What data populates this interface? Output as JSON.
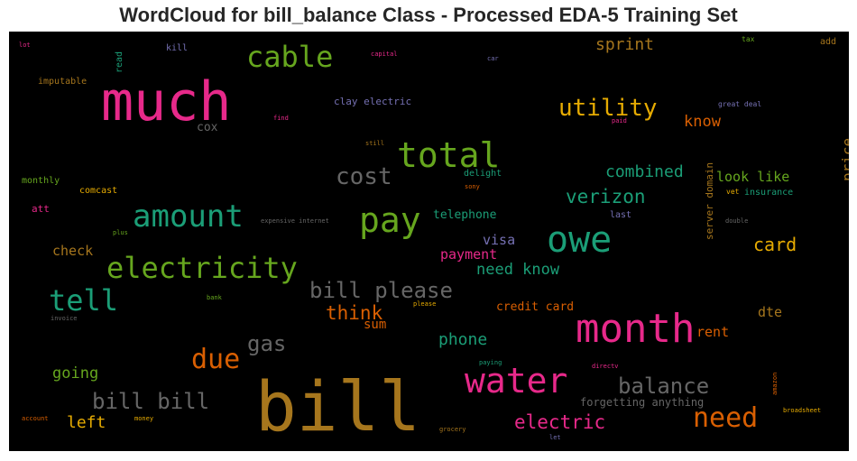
{
  "chart_data": {
    "type": "wordcloud",
    "title": "WordCloud for bill_balance Class - Processed EDA-5 Training Set",
    "background": "#000000",
    "words": [
      {
        "text": "bill",
        "color": "#a6761d"
      },
      {
        "text": "much",
        "color": "#e7298a"
      },
      {
        "text": "month",
        "color": "#e7298a"
      },
      {
        "text": "total",
        "color": "#66a61e"
      },
      {
        "text": "owe",
        "color": "#1b9e77"
      },
      {
        "text": "pay",
        "color": "#66a61e"
      },
      {
        "text": "water",
        "color": "#e7298a"
      },
      {
        "text": "amount",
        "color": "#1b9e77"
      },
      {
        "text": "electricity",
        "color": "#66a61e"
      },
      {
        "text": "cable",
        "color": "#66a61e"
      },
      {
        "text": "tell",
        "color": "#1b9e77"
      },
      {
        "text": "due",
        "color": "#d95f02"
      },
      {
        "text": "need",
        "color": "#d95f02"
      },
      {
        "text": "cost",
        "color": "#666666"
      },
      {
        "text": "utility",
        "color": "#e6ab02"
      },
      {
        "text": "bill please",
        "color": "#666666"
      },
      {
        "text": "bill bill",
        "color": "#666666"
      },
      {
        "text": "balance",
        "color": "#666666"
      },
      {
        "text": "gas",
        "color": "#666666"
      },
      {
        "text": "verizon",
        "color": "#1b9e77"
      },
      {
        "text": "electric",
        "color": "#e7298a"
      },
      {
        "text": "think",
        "color": "#d95f02"
      },
      {
        "text": "card",
        "color": "#e6ab02"
      },
      {
        "text": "sprint",
        "color": "#a6761d"
      },
      {
        "text": "combined",
        "color": "#1b9e77"
      },
      {
        "text": "phone",
        "color": "#1b9e77"
      },
      {
        "text": "left",
        "color": "#e6ab02"
      },
      {
        "text": "need know",
        "color": "#1b9e77"
      },
      {
        "text": "know",
        "color": "#d95f02"
      },
      {
        "text": "going",
        "color": "#66a61e"
      },
      {
        "text": "look like",
        "color": "#66a61e"
      },
      {
        "text": "visa",
        "color": "#7570b3"
      },
      {
        "text": "payment",
        "color": "#e7298a"
      },
      {
        "text": "check",
        "color": "#a6761d"
      },
      {
        "text": "rent",
        "color": "#d95f02"
      },
      {
        "text": "dte",
        "color": "#a6761d"
      },
      {
        "text": "telephone",
        "color": "#1b9e77"
      },
      {
        "text": "price",
        "color": "#a6761d"
      },
      {
        "text": "credit card",
        "color": "#d95f02"
      },
      {
        "text": "sum",
        "color": "#d95f02"
      },
      {
        "text": "cox",
        "color": "#666666"
      },
      {
        "text": "forgetting anything",
        "color": "#666666"
      },
      {
        "text": "clay electric",
        "color": "#7570b3"
      },
      {
        "text": "server domain",
        "color": "#a6761d"
      },
      {
        "text": "imputable",
        "color": "#a6761d"
      },
      {
        "text": "monthly",
        "color": "#66a61e"
      },
      {
        "text": "comcast",
        "color": "#e6ab02"
      },
      {
        "text": "att",
        "color": "#e7298a"
      },
      {
        "text": "read",
        "color": "#1b9e77"
      },
      {
        "text": "kill",
        "color": "#7570b3"
      },
      {
        "text": "insurance",
        "color": "#1b9e77"
      },
      {
        "text": "last",
        "color": "#7570b3"
      },
      {
        "text": "add",
        "color": "#a6761d"
      },
      {
        "text": "delight",
        "color": "#1b9e77"
      },
      {
        "text": "vet",
        "color": "#e6ab02"
      },
      {
        "text": "great deal",
        "color": "#7570b3"
      },
      {
        "text": "paid",
        "color": "#e7298a"
      },
      {
        "text": "find",
        "color": "#e7298a"
      },
      {
        "text": "still",
        "color": "#a6761d"
      },
      {
        "text": "lot",
        "color": "#e7298a"
      },
      {
        "text": "capital",
        "color": "#e7298a"
      },
      {
        "text": "car",
        "color": "#7570b3"
      },
      {
        "text": "tax",
        "color": "#66a61e"
      },
      {
        "text": "sony",
        "color": "#d95f02"
      },
      {
        "text": "expensive internet",
        "color": "#666666"
      },
      {
        "text": "plus",
        "color": "#66a61e"
      },
      {
        "text": "double",
        "color": "#666666"
      },
      {
        "text": "bank",
        "color": "#66a61e"
      },
      {
        "text": "please",
        "color": "#e6ab02"
      },
      {
        "text": "invoice",
        "color": "#666666"
      },
      {
        "text": "paying",
        "color": "#1b9e77"
      },
      {
        "text": "directv",
        "color": "#e7298a"
      },
      {
        "text": "amazon",
        "color": "#d95f02"
      },
      {
        "text": "account",
        "color": "#d95f02"
      },
      {
        "text": "money",
        "color": "#e6ab02"
      },
      {
        "text": "grocery",
        "color": "#a6761d"
      },
      {
        "text": "let",
        "color": "#7570b3"
      },
      {
        "text": "broadsheet",
        "color": "#e6ab02"
      }
    ]
  }
}
